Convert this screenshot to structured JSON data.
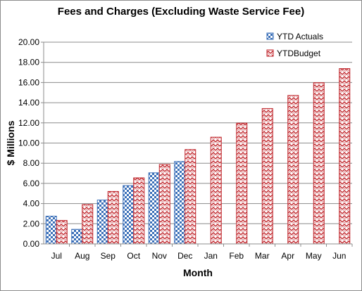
{
  "chart_data": {
    "type": "bar",
    "title": "Fees and Charges (Excluding  Waste Service Fee)",
    "xlabel": "Month",
    "ylabel": "$ Millions",
    "ylim": [
      0,
      20
    ],
    "yticks": [
      "0.00",
      "2.00",
      "4.00",
      "6.00",
      "8.00",
      "10.00",
      "12.00",
      "14.00",
      "16.00",
      "18.00",
      "20.00"
    ],
    "grid": true,
    "legend_position": "top-right",
    "categories": [
      "Jul",
      "Aug",
      "Sep",
      "Oct",
      "Nov",
      "Dec",
      "Jan",
      "Feb",
      "Mar",
      "Apr",
      "May",
      "Jun"
    ],
    "series": [
      {
        "name": "YTD Actuals",
        "color": "#3a6fb8",
        "pattern": "checker",
        "values": [
          2.75,
          1.45,
          4.35,
          5.78,
          7.05,
          8.17,
          null,
          null,
          null,
          null,
          null,
          null
        ]
      },
      {
        "name": "YTDBudget",
        "color": "#c0262c",
        "pattern": "zigzag",
        "values": [
          2.32,
          3.9,
          5.2,
          6.55,
          7.88,
          9.35,
          10.58,
          11.97,
          13.42,
          14.72,
          15.98,
          17.38
        ]
      }
    ]
  }
}
